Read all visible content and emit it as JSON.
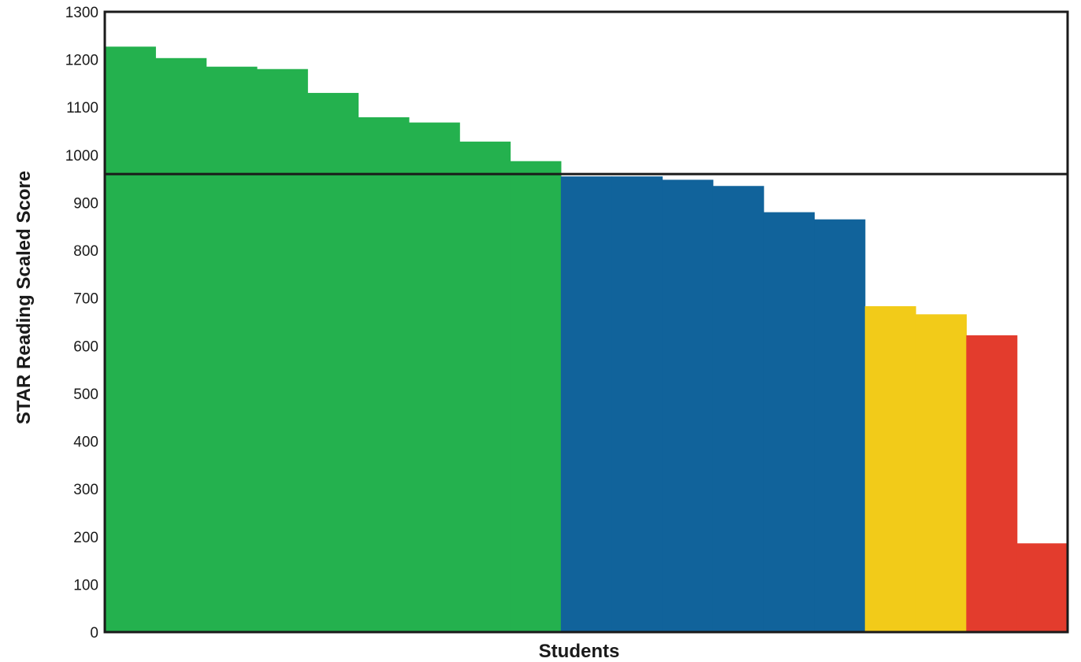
{
  "chart_data": {
    "type": "bar",
    "xlabel": "Students",
    "ylabel": "STAR Reading Scaled Score",
    "ylim": [
      0,
      1300
    ],
    "yticks": [
      0,
      100,
      200,
      300,
      400,
      500,
      600,
      700,
      800,
      900,
      1000,
      1100,
      1200,
      1300
    ],
    "benchmark": 960,
    "grid": false,
    "legend": "none",
    "values": [
      1227,
      1203,
      1185,
      1180,
      1130,
      1079,
      1068,
      1028,
      987,
      955,
      955,
      948,
      935,
      880,
      865,
      683,
      666,
      622,
      186
    ],
    "colors": [
      "#24b14e",
      "#24b14e",
      "#24b14e",
      "#24b14e",
      "#24b14e",
      "#24b14e",
      "#24b14e",
      "#24b14e",
      "#24b14e",
      "#11639b",
      "#11639b",
      "#11639b",
      "#11639b",
      "#11639b",
      "#11639b",
      "#f2cb19",
      "#f2cb19",
      "#e33c2d",
      "#e33c2d"
    ]
  }
}
